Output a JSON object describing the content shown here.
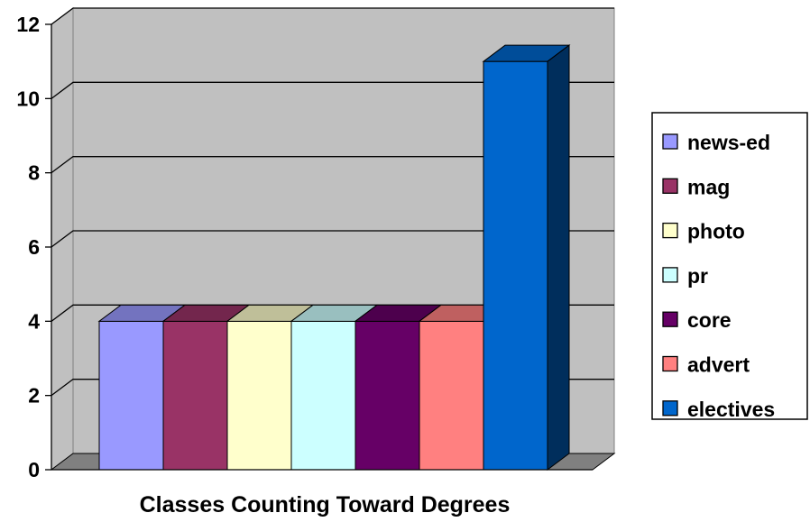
{
  "chart_data": {
    "type": "bar",
    "title": "",
    "xlabel": "Classes Counting Toward Degrees",
    "ylabel": "",
    "ylim": [
      0,
      12
    ],
    "yticks": [
      0,
      2,
      4,
      6,
      8,
      10,
      12
    ],
    "grid": true,
    "legend_position": "right",
    "series": [
      {
        "name": "news-ed",
        "values": [
          4
        ],
        "color": "#9999FF"
      },
      {
        "name": "mag",
        "values": [
          4
        ],
        "color": "#993366"
      },
      {
        "name": "photo",
        "values": [
          4
        ],
        "color": "#FFFFCC"
      },
      {
        "name": "pr",
        "values": [
          4
        ],
        "color": "#CCFFFF"
      },
      {
        "name": "core",
        "values": [
          4
        ],
        "color": "#660066"
      },
      {
        "name": "advert",
        "values": [
          4
        ],
        "color": "#FF8080"
      },
      {
        "name": "electives",
        "values": [
          11
        ],
        "color": "#0066CC"
      }
    ]
  }
}
